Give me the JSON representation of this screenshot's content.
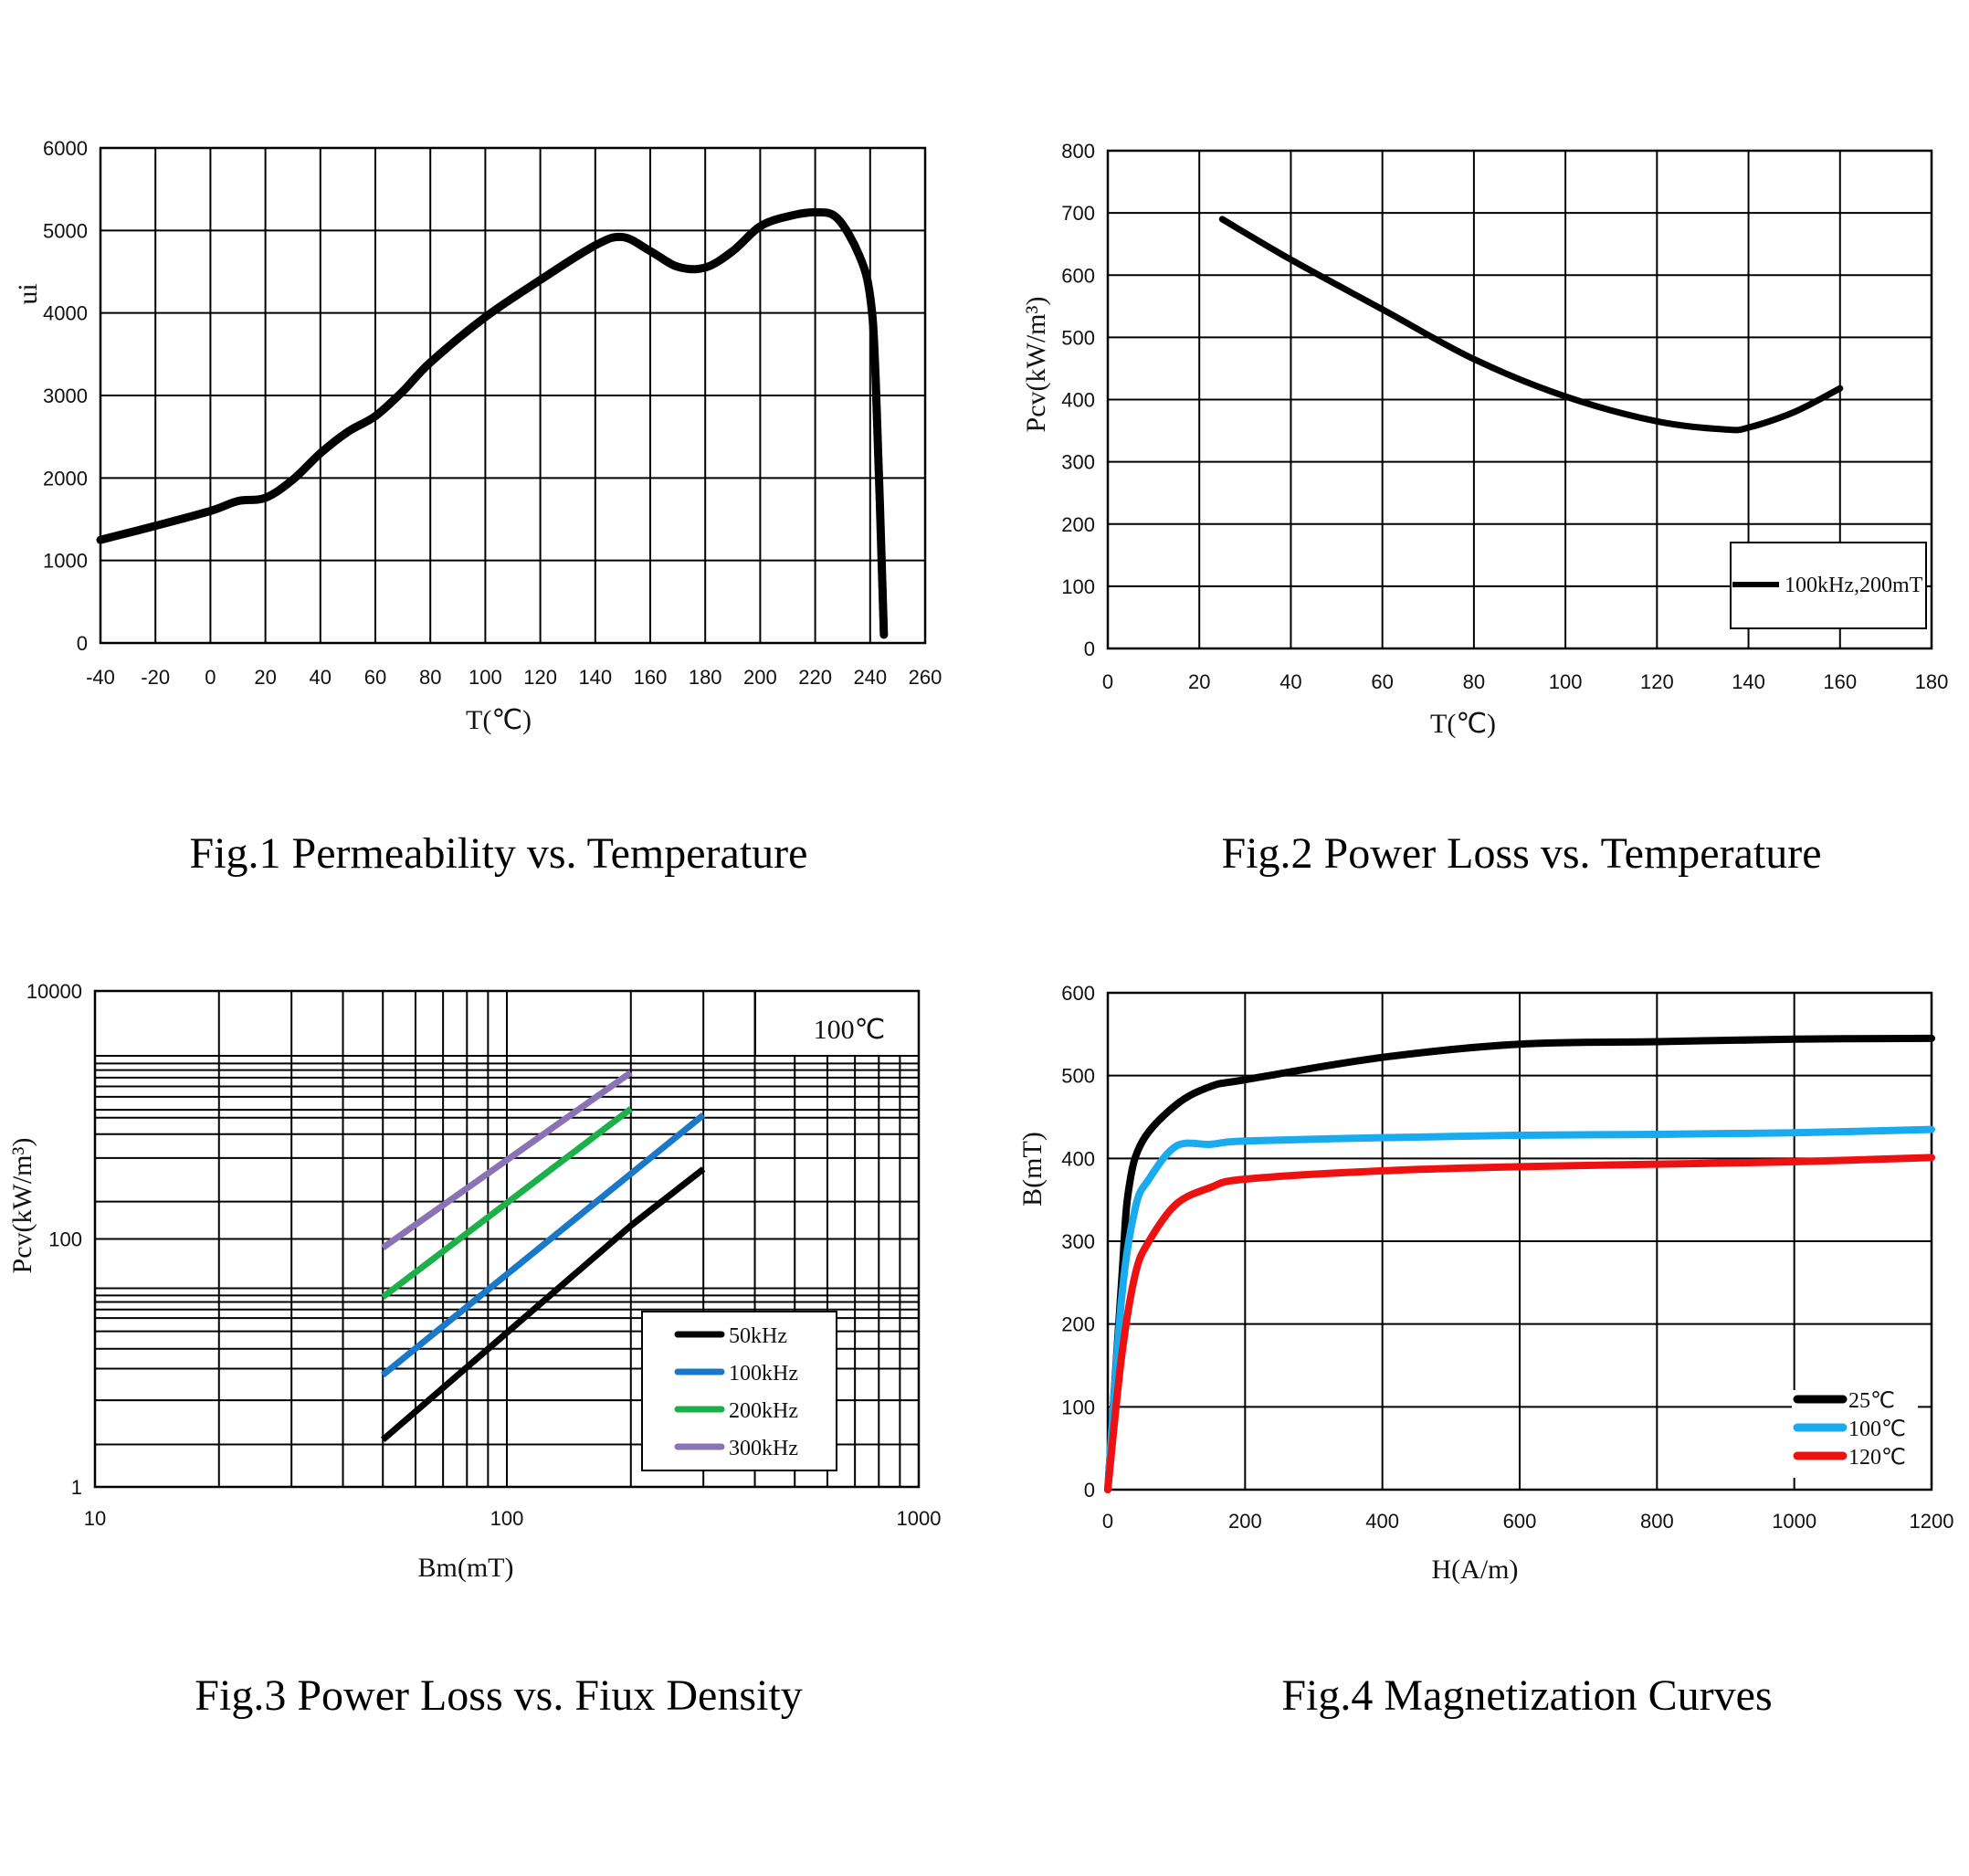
{
  "colors": {
    "black": "#000000",
    "blue": "#1a78c8",
    "green": "#1bb04a",
    "purple": "#8a73b5",
    "cyan": "#1aaaee",
    "red": "#ee1111"
  },
  "chart_data": [
    {
      "id": "fig1",
      "type": "line",
      "caption": "Fig.1 Permeability vs. Temperature",
      "xlabel": "T(℃)",
      "ylabel": "ui",
      "xlim": [
        -40,
        260
      ],
      "ylim": [
        0,
        6000
      ],
      "xticks": [
        "-40",
        "-20",
        "0",
        "20",
        "40",
        "60",
        "80",
        "100",
        "120",
        "140",
        "160",
        "180",
        "200",
        "220",
        "240",
        "260"
      ],
      "yticks": [
        "0",
        "1000",
        "2000",
        "3000",
        "4000",
        "5000",
        "6000"
      ],
      "grid": true,
      "series": [
        {
          "name": "ui",
          "color": "#000000",
          "x": [
            -40,
            -20,
            0,
            10,
            20,
            30,
            40,
            50,
            60,
            70,
            80,
            100,
            120,
            140,
            150,
            160,
            170,
            180,
            190,
            200,
            210,
            220,
            228,
            236,
            240,
            242,
            245
          ],
          "y": [
            1250,
            1420,
            1600,
            1720,
            1760,
            1980,
            2300,
            2560,
            2750,
            3050,
            3400,
            3950,
            4400,
            4820,
            4920,
            4750,
            4560,
            4550,
            4750,
            5050,
            5170,
            5220,
            5150,
            4700,
            4200,
            3200,
            100
          ]
        }
      ]
    },
    {
      "id": "fig2",
      "type": "line",
      "caption": "Fig.2 Power Loss vs. Temperature",
      "xlabel": "T(℃)",
      "ylabel": "Pcv(kW/m³)",
      "xlim": [
        0,
        180
      ],
      "ylim": [
        0,
        800
      ],
      "xticks": [
        "0",
        "20",
        "40",
        "60",
        "80",
        "100",
        "120",
        "140",
        "160",
        "180"
      ],
      "yticks": [
        "0",
        "100",
        "200",
        "300",
        "400",
        "500",
        "600",
        "700",
        "800"
      ],
      "grid": true,
      "legend_position": "bottom-right",
      "series": [
        {
          "name": "100kHz,200mT",
          "color": "#000000",
          "x": [
            25,
            40,
            60,
            80,
            100,
            120,
            135,
            140,
            150,
            160
          ],
          "y": [
            690,
            625,
            545,
            465,
            405,
            365,
            352,
            355,
            380,
            418
          ]
        }
      ]
    },
    {
      "id": "fig3",
      "type": "line",
      "caption": "Fig.3 Power Loss vs. Fiux Density",
      "xlabel": "Bm(mT)",
      "ylabel": "Pcv(kW/m³)",
      "xscale": "log",
      "yscale": "log",
      "xlim": [
        10,
        1000
      ],
      "ylim": [
        1,
        10000
      ],
      "xticks": [
        "10",
        "100",
        "1000"
      ],
      "yticks": [
        "1",
        "100",
        "10000"
      ],
      "grid": true,
      "annotation": "100℃",
      "legend_position": "bottom-right",
      "series": [
        {
          "name": "50kHz",
          "color": "#000000",
          "x": [
            50,
            200,
            300
          ],
          "y": [
            2.4,
            128,
            366
          ]
        },
        {
          "name": "100kHz",
          "color": "#1a78c8",
          "x": [
            50,
            300
          ],
          "y": [
            8,
            1000
          ]
        },
        {
          "name": "200kHz",
          "color": "#1bb04a",
          "x": [
            50,
            200
          ],
          "y": [
            34,
            1120
          ]
        },
        {
          "name": "300kHz",
          "color": "#8a73b5",
          "x": [
            50,
            200
          ],
          "y": [
            85,
            2200
          ]
        }
      ]
    },
    {
      "id": "fig4",
      "type": "line",
      "caption": "Fig.4 Magnetization Curves",
      "xlabel": "H(A/m)",
      "ylabel": "B(mT)",
      "xlim": [
        0,
        1200
      ],
      "ylim": [
        0,
        600
      ],
      "xticks": [
        "0",
        "200",
        "400",
        "600",
        "800",
        "1000",
        "1200"
      ],
      "yticks": [
        "0",
        "100",
        "200",
        "300",
        "400",
        "500",
        "600"
      ],
      "grid": true,
      "legend_position": "bottom-right",
      "series": [
        {
          "name": "25℃",
          "color": "#000000",
          "x": [
            0,
            20,
            30,
            50,
            100,
            150,
            200,
            400,
            600,
            800,
            1000,
            1200
          ],
          "y": [
            0,
            250,
            360,
            420,
            465,
            487,
            495,
            522,
            538,
            541,
            544,
            545
          ]
        },
        {
          "name": "100℃",
          "color": "#1aaaee",
          "x": [
            0,
            20,
            40,
            60,
            100,
            150,
            200,
            400,
            600,
            800,
            1000,
            1200
          ],
          "y": [
            0,
            230,
            340,
            375,
            415,
            417,
            421,
            425,
            428,
            429,
            431,
            435
          ]
        },
        {
          "name": "120℃",
          "color": "#ee1111",
          "x": [
            0,
            20,
            40,
            60,
            100,
            150,
            200,
            400,
            600,
            800,
            1000,
            1200
          ],
          "y": [
            0,
            160,
            260,
            300,
            345,
            365,
            375,
            385,
            390,
            393,
            396,
            401
          ]
        }
      ]
    }
  ]
}
